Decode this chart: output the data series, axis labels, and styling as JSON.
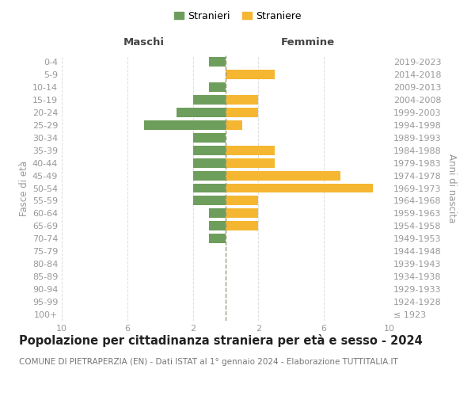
{
  "age_groups": [
    "100+",
    "95-99",
    "90-94",
    "85-89",
    "80-84",
    "75-79",
    "70-74",
    "65-69",
    "60-64",
    "55-59",
    "50-54",
    "45-49",
    "40-44",
    "35-39",
    "30-34",
    "25-29",
    "20-24",
    "15-19",
    "10-14",
    "5-9",
    "0-4"
  ],
  "birth_years": [
    "≤ 1923",
    "1924-1928",
    "1929-1933",
    "1934-1938",
    "1939-1943",
    "1944-1948",
    "1949-1953",
    "1954-1958",
    "1959-1963",
    "1964-1968",
    "1969-1973",
    "1974-1978",
    "1979-1983",
    "1984-1988",
    "1989-1993",
    "1994-1998",
    "1999-2003",
    "2004-2008",
    "2009-2013",
    "2014-2018",
    "2019-2023"
  ],
  "maschi": [
    0,
    0,
    0,
    0,
    0,
    0,
    1,
    1,
    1,
    2,
    2,
    2,
    2,
    2,
    2,
    5,
    3,
    2,
    1,
    0,
    1
  ],
  "femmine": [
    0,
    0,
    0,
    0,
    0,
    0,
    0,
    2,
    2,
    2,
    9,
    7,
    3,
    3,
    0,
    1,
    2,
    2,
    0,
    3,
    0
  ],
  "color_maschi": "#6d9e5b",
  "color_femmine": "#f5b731",
  "title": "Popolazione per cittadinanza straniera per età e sesso - 2024",
  "subtitle": "COMUNE DI PIETRAPERZIA (EN) - Dati ISTAT al 1° gennaio 2024 - Elaborazione TUTTITALIA.IT",
  "label_maschi": "Maschi",
  "label_femmine": "Femmine",
  "ylabel_left": "Fasce di età",
  "ylabel_right": "Anni di nascita",
  "legend_stranieri": "Stranieri",
  "legend_straniere": "Straniere",
  "xlim": 10,
  "dashed_line_color": "#999977",
  "tick_color": "#999999",
  "grid_color": "#dddddd",
  "title_fontsize": 10.5,
  "subtitle_fontsize": 7.5,
  "header_fontsize": 9.5,
  "tick_fontsize": 8,
  "legend_fontsize": 9,
  "ylabel_fontsize": 8.5
}
